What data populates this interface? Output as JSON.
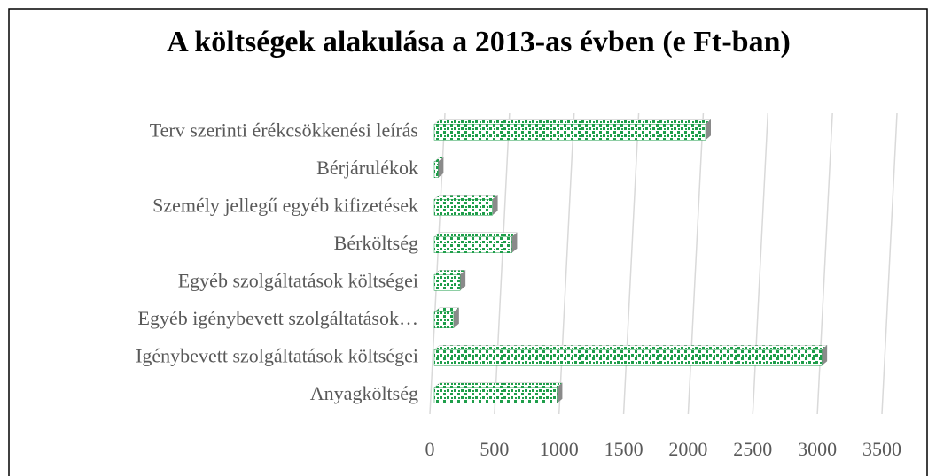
{
  "chart_data": {
    "type": "bar",
    "orientation": "horizontal",
    "title": "A költségek alakulása a 2013-as évben (e Ft-ban)",
    "categories": [
      "Anyagköltség",
      "Igénybevett szolgáltatások költségei",
      "Egyéb igénybevett szolgáltatások…",
      "Egyéb szolgáltatások költségei",
      "Bérköltség",
      "Személy jellegű egyéb kifizetések",
      "Bérjárulékok",
      "Terv szerinti érékcsökkenési leírás"
    ],
    "values": [
      950,
      3000,
      150,
      200,
      600,
      450,
      30,
      2100
    ],
    "color": "#1e9e4a",
    "xlim": [
      0,
      3500
    ],
    "xticks": [
      0,
      500,
      1000,
      1500,
      2000,
      2500,
      3000,
      3500
    ],
    "grid": true
  }
}
